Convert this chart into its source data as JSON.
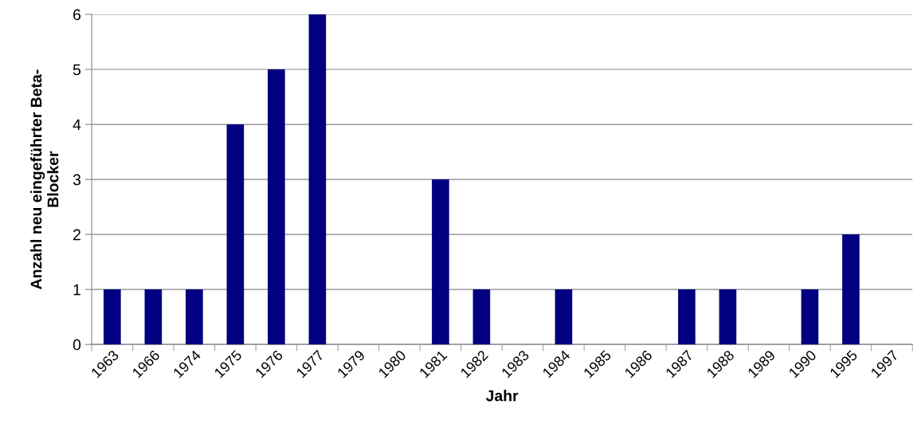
{
  "chart_data": {
    "type": "bar",
    "xlabel": "Jahr",
    "ylabel": "Anzahl neu eingeführter Beta-\nBlocker",
    "categories": [
      "1963",
      "1966",
      "1974",
      "1975",
      "1976",
      "1977",
      "1979",
      "1980",
      "1981",
      "1982",
      "1983",
      "1984",
      "1985",
      "1986",
      "1987",
      "1988",
      "1989",
      "1990",
      "1995",
      "1997"
    ],
    "values": [
      1,
      1,
      1,
      4,
      5,
      6,
      0,
      0,
      3,
      1,
      0,
      1,
      0,
      0,
      1,
      1,
      0,
      1,
      2,
      0
    ],
    "color": "#000080",
    "ylim": [
      0,
      6
    ],
    "yticks": [
      0,
      1,
      2,
      3,
      4,
      5,
      6
    ],
    "grid": "y",
    "legend": false
  }
}
